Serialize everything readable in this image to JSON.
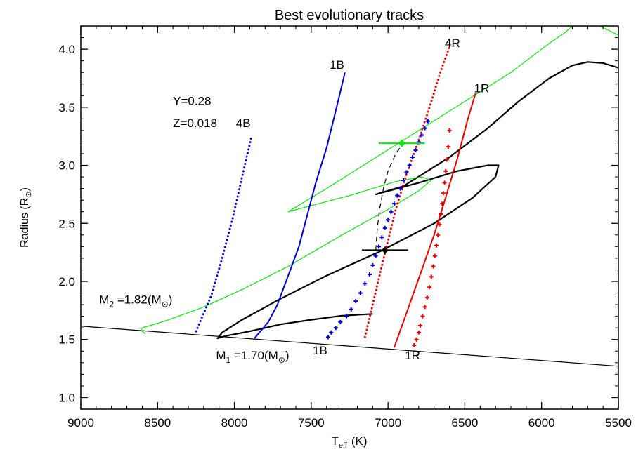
{
  "chart_data": {
    "type": "line",
    "title": "Best evolutionary tracks",
    "xlabel": "T",
    "xlabel_sub": "eff",
    "xlabel_unit": "(K)",
    "ylabel": "Radius (R",
    "ylabel_unit_symbol": "⊙",
    "ylabel_close": ")",
    "xlim": [
      9000,
      5500
    ],
    "ylim": [
      0.9,
      4.2
    ],
    "x_reversed": true,
    "x_ticks": [
      9000,
      8500,
      8000,
      7500,
      7000,
      6500,
      6000,
      5500
    ],
    "x_tick_labels": [
      "9000",
      "8500",
      "8000",
      "7500",
      "7000",
      "6500",
      "6000",
      "5500"
    ],
    "y_ticks": [
      1.0,
      1.5,
      2.0,
      2.5,
      3.0,
      3.5,
      4.0
    ],
    "y_tick_labels": [
      "1.0",
      "1.5",
      "2.0",
      "2.5",
      "3.0",
      "3.5",
      "4.0"
    ],
    "grid": false,
    "colors": {
      "black": "#000000",
      "green": "#00ee00",
      "blue": "#0000dd",
      "red": "#ee0000"
    },
    "series": [
      {
        "id": "zams-line",
        "color": "#000000",
        "style": "solid",
        "width": 1.2,
        "x": [
          9000,
          5500
        ],
        "y": [
          1.615,
          1.27
        ]
      },
      {
        "id": "track-m1",
        "color": "#000000",
        "style": "solid",
        "width": 2.2,
        "x": [
          7100,
          7300,
          7500,
          7700,
          7900,
          8060,
          8110,
          8080,
          7950,
          7700,
          7400,
          7050,
          6700,
          6450,
          6300,
          6280,
          6350,
          6550,
          6800,
          7080,
          6900,
          6600,
          6350,
          6150,
          5950,
          5800,
          5700,
          5600,
          5500
        ],
        "y": [
          1.72,
          1.705,
          1.67,
          1.63,
          1.57,
          1.53,
          1.51,
          1.56,
          1.67,
          1.85,
          2.05,
          2.26,
          2.5,
          2.72,
          2.9,
          3.0,
          3.0,
          2.95,
          2.85,
          2.75,
          2.82,
          3.07,
          3.32,
          3.55,
          3.75,
          3.86,
          3.89,
          3.88,
          3.84
        ]
      },
      {
        "id": "track-m2",
        "color": "#00ee00",
        "style": "solid",
        "width": 1.2,
        "x": [
          8580,
          8610,
          8600,
          8450,
          8200,
          7950,
          7650,
          7300,
          7000,
          6800,
          6720,
          6780,
          6950,
          7250,
          7650,
          7400,
          7100,
          6800,
          6500,
          6200,
          5950,
          5850,
          5800,
          5620,
          5530,
          5500
        ],
        "y": [
          1.55,
          1.58,
          1.6,
          1.66,
          1.78,
          1.93,
          2.13,
          2.4,
          2.62,
          2.78,
          2.87,
          2.9,
          2.86,
          2.74,
          2.6,
          2.8,
          3.05,
          3.3,
          3.55,
          3.8,
          4.05,
          4.14,
          4.2,
          4.2,
          4.14,
          4.12
        ]
      },
      {
        "id": "iso-1B",
        "color": "#0000dd",
        "style": "solid",
        "width": 2,
        "x": [
          7870,
          7780,
          7720,
          7650,
          7580,
          7530,
          7470,
          7400,
          7340,
          7280
        ],
        "y": [
          1.51,
          1.65,
          1.8,
          2.05,
          2.3,
          2.55,
          2.85,
          3.15,
          3.47,
          3.8
        ]
      },
      {
        "id": "iso-4B",
        "color": "#0000dd",
        "style": "dotted",
        "width": 3,
        "x": [
          8250,
          8150,
          8080,
          8010,
          7950,
          7890
        ],
        "y": [
          1.57,
          1.88,
          2.2,
          2.55,
          2.9,
          3.24
        ]
      },
      {
        "id": "iso-1R",
        "color": "#ee0000",
        "style": "solid",
        "width": 2,
        "x": [
          6960,
          6860,
          6780,
          6700,
          6630,
          6550,
          6480,
          6430
        ],
        "y": [
          1.43,
          1.8,
          2.1,
          2.4,
          2.7,
          3.05,
          3.4,
          3.62
        ]
      },
      {
        "id": "iso-4R",
        "color": "#ee0000",
        "style": "dotted",
        "width": 3,
        "x": [
          7150,
          7100,
          7050,
          7000,
          6950,
          6880,
          6800,
          6730,
          6660,
          6600
        ],
        "y": [
          1.52,
          1.8,
          2.08,
          2.35,
          2.62,
          2.92,
          3.22,
          3.5,
          3.8,
          4.02
        ]
      },
      {
        "id": "dash-link",
        "color": "#000000",
        "style": "dashed",
        "width": 1.2,
        "x": [
          7080,
          7070,
          7055,
          7030,
          7000,
          6950,
          6900
        ],
        "y": [
          2.27,
          2.45,
          2.62,
          2.8,
          2.95,
          3.1,
          3.19
        ]
      }
    ],
    "cross_series": [
      {
        "id": "cross-blue",
        "color": "#0000dd",
        "x": [
          7390,
          7370,
          7340,
          7310,
          7270,
          7240,
          7210,
          7180,
          7150,
          7120,
          7100,
          7080,
          7060,
          7040,
          7020,
          7000,
          6980,
          6960,
          6940,
          6920,
          6900,
          6880,
          6860,
          6840,
          6820,
          6800,
          6780,
          6760,
          6740
        ],
        "y": [
          1.52,
          1.56,
          1.6,
          1.65,
          1.7,
          1.76,
          1.83,
          1.9,
          1.98,
          2.06,
          2.14,
          2.22,
          2.3,
          2.38,
          2.46,
          2.53,
          2.6,
          2.67,
          2.74,
          2.8,
          2.87,
          2.94,
          3.0,
          3.07,
          3.13,
          3.2,
          3.26,
          3.32,
          3.38
        ]
      },
      {
        "id": "cross-red",
        "color": "#ee0000",
        "x": [
          6830,
          6815,
          6800,
          6790,
          6775,
          6760,
          6745,
          6730,
          6718,
          6705,
          6695,
          6685,
          6675,
          6665,
          6655,
          6647,
          6640,
          6632,
          6624,
          6616,
          6608,
          6600
        ],
        "y": [
          1.45,
          1.5,
          1.56,
          1.62,
          1.7,
          1.78,
          1.86,
          1.95,
          2.04,
          2.13,
          2.22,
          2.31,
          2.4,
          2.49,
          2.58,
          2.67,
          2.76,
          2.85,
          2.95,
          3.05,
          3.16,
          3.3
        ]
      }
    ],
    "observed_points": [
      {
        "id": "star-m1",
        "color": "#000000",
        "x": 7020,
        "y": 2.27,
        "x_err": 150,
        "y_err": 0.03
      },
      {
        "id": "star-m2",
        "color": "#00ee00",
        "x": 6910,
        "y": 3.19,
        "x_err": 150,
        "y_err": 0.03
      }
    ],
    "annotations": [
      {
        "id": "label-Y",
        "text": "Y=0.28",
        "x": 8400,
        "y": 3.52
      },
      {
        "id": "label-Z",
        "text": "Z=0.018",
        "x": 8400,
        "y": 3.33
      },
      {
        "id": "label-4B",
        "text": "4B",
        "x": 7990,
        "y": 3.33
      },
      {
        "id": "label-1B-top",
        "text": "1B",
        "x": 7380,
        "y": 3.83
      },
      {
        "id": "label-4R",
        "text": "4R",
        "x": 6630,
        "y": 4.02
      },
      {
        "id": "label-1R-top",
        "text": "1R",
        "x": 6440,
        "y": 3.63
      },
      {
        "id": "label-1B-bottom",
        "text": "1B",
        "x": 7490,
        "y": 1.37
      },
      {
        "id": "label-1R-bottom",
        "text": "1R",
        "x": 6890,
        "y": 1.33
      }
    ],
    "mass_labels": [
      {
        "id": "label-m2",
        "prefix": "M",
        "sub": "2",
        "value": " =1.82(M",
        "sun": "⊙",
        "close": ")",
        "x": 8880,
        "y": 1.81
      },
      {
        "id": "label-m1",
        "prefix": "M",
        "sub": "1",
        "value": " =1.70(M",
        "sun": "⊙",
        "close": ")",
        "x": 8120,
        "y": 1.33
      }
    ]
  }
}
